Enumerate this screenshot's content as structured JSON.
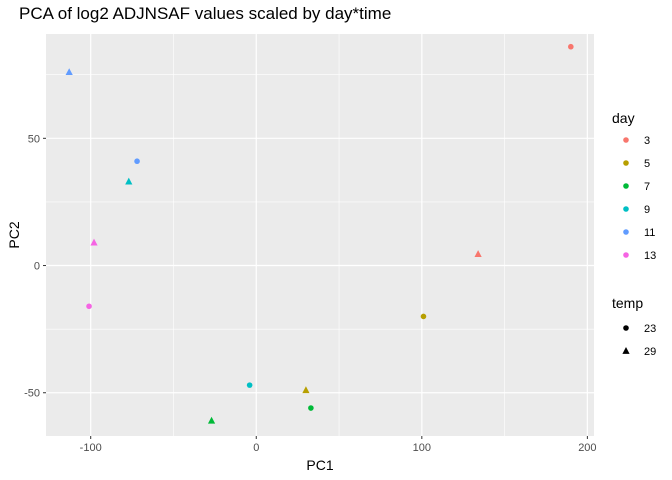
{
  "chart_data": {
    "type": "scatter",
    "title": "PCA of log2 ADJNSAF values scaled by day*time",
    "xlabel": "PC1",
    "ylabel": "PC2",
    "xlim": [
      -127,
      204
    ],
    "ylim": [
      -67,
      91
    ],
    "xticks": [
      -100,
      0,
      100,
      200
    ],
    "yticks": [
      -50,
      0,
      50
    ],
    "grid": true,
    "background": "#ebebeb",
    "legend_placement": "right",
    "color_legend": {
      "title": "day",
      "entries": [
        {
          "label": "3",
          "color": "#f8766d"
        },
        {
          "label": "5",
          "color": "#b79f00"
        },
        {
          "label": "7",
          "color": "#00ba38"
        },
        {
          "label": "9",
          "color": "#00bfc4"
        },
        {
          "label": "11",
          "color": "#619cff"
        },
        {
          "label": "13",
          "color": "#f564e3"
        }
      ]
    },
    "shape_legend": {
      "title": "temp",
      "entries": [
        {
          "label": "23",
          "shape": "circle"
        },
        {
          "label": "29",
          "shape": "triangle"
        }
      ]
    },
    "points": [
      {
        "x": 190,
        "y": 86,
        "day": "3",
        "temp": "23"
      },
      {
        "x": 134,
        "y": 4.5,
        "day": "3",
        "temp": "29"
      },
      {
        "x": 101,
        "y": -20,
        "day": "5",
        "temp": "23"
      },
      {
        "x": 30,
        "y": -49,
        "day": "5",
        "temp": "29"
      },
      {
        "x": 33,
        "y": -56,
        "day": "7",
        "temp": "23"
      },
      {
        "x": -27,
        "y": -61,
        "day": "7",
        "temp": "29"
      },
      {
        "x": -4,
        "y": -47,
        "day": "9",
        "temp": "23"
      },
      {
        "x": -77,
        "y": 33,
        "day": "9",
        "temp": "29"
      },
      {
        "x": -72,
        "y": 41,
        "day": "11",
        "temp": "23"
      },
      {
        "x": -113,
        "y": 76,
        "day": "11",
        "temp": "29"
      },
      {
        "x": -101,
        "y": -16,
        "day": "13",
        "temp": "23"
      },
      {
        "x": -98,
        "y": 9,
        "day": "13",
        "temp": "29"
      }
    ]
  }
}
